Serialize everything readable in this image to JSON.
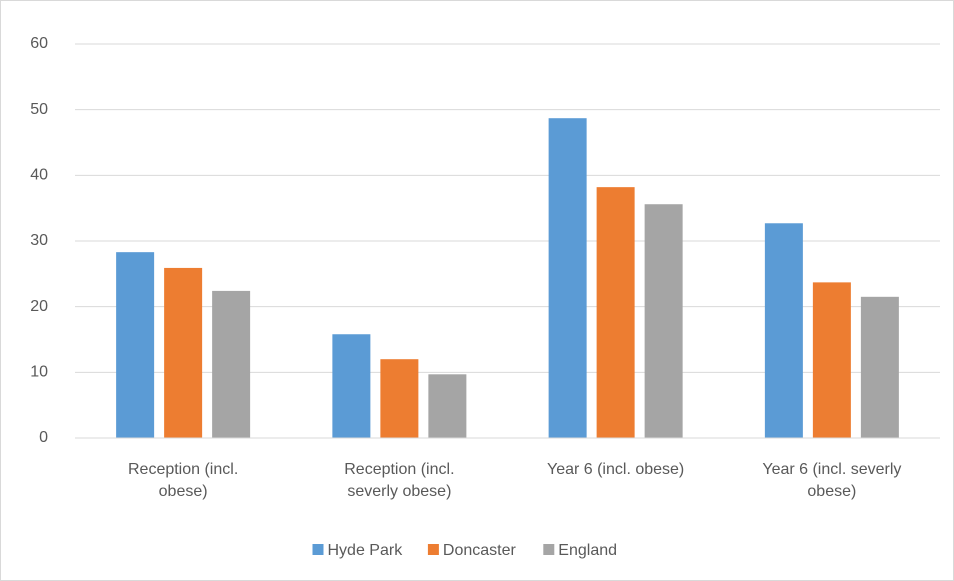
{
  "chart_data": {
    "type": "bar",
    "categories": [
      "Reception (incl. obese)",
      "Reception (incl. severly obese)",
      "Year 6 (incl. obese)",
      "Year 6 (incl. severly obese)"
    ],
    "series": [
      {
        "name": "Hyde Park",
        "color": "#5b9bd5",
        "values": [
          28.3,
          15.8,
          48.7,
          32.7
        ]
      },
      {
        "name": "Doncaster",
        "color": "#ed7d31",
        "values": [
          25.9,
          12.0,
          38.2,
          23.7
        ]
      },
      {
        "name": "England",
        "color": "#a5a5a5",
        "values": [
          22.4,
          9.7,
          35.6,
          21.5
        ]
      }
    ],
    "ylim": [
      0,
      60
    ],
    "yticks": [
      0,
      10,
      20,
      30,
      40,
      50,
      60
    ],
    "grid": true,
    "legend": "bottom"
  }
}
